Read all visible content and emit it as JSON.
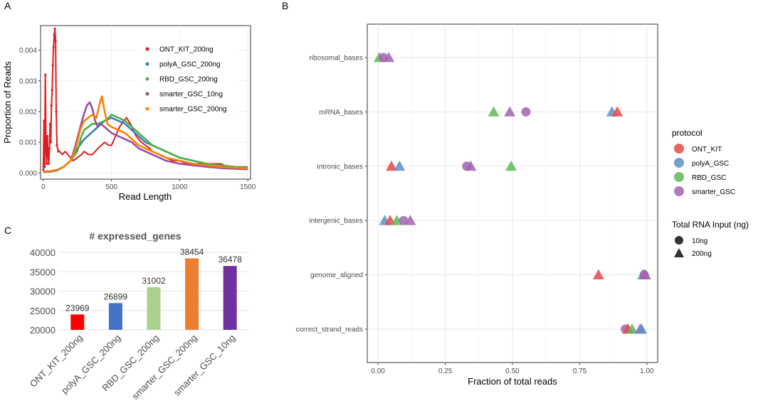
{
  "panel_labels": [
    "A",
    "B",
    "C"
  ],
  "colors": {
    "ONT_KIT": "#e41a1c",
    "polyA_GSC": "#377eb8",
    "RBD_GSC": "#4daf4a",
    "smarter_GSC_10": "#984ea3",
    "smarter_GSC_200": "#ff7f00",
    "B_ONT_KIT": "#e8484a",
    "B_polyA_GSC": "#5b92c8",
    "B_RBD_GSC": "#5fb85a",
    "B_smarter_GSC": "#a463b3",
    "C_bars": [
      "#ff0000",
      "#4472c4",
      "#a9d18e",
      "#ed7d31",
      "#7030a0"
    ]
  },
  "chart_data": [
    {
      "panel": "A",
      "type": "line",
      "xlabel": "Read Length",
      "ylabel": "Proportion of Reads",
      "xlim": [
        -20,
        1520
      ],
      "ylim": [
        -0.0002,
        0.0048
      ],
      "x_ticks": [
        "0",
        "500",
        "1000",
        "1500"
      ],
      "y_ticks": [
        "0.000",
        "0.001",
        "0.002",
        "0.003",
        "0.004"
      ],
      "legend": [
        "ONT_KIT_200ng",
        "polyA_GSC_200ng",
        "RBD_GSC_200ng",
        "smarter_GSC_10ng",
        "smarter_GSC_200ng"
      ],
      "series": [
        {
          "name": "ONT_KIT_200ng",
          "color_key": "ONT_KIT",
          "x": [
            0,
            5,
            10,
            15,
            20,
            25,
            30,
            35,
            40,
            45,
            50,
            55,
            60,
            65,
            70,
            75,
            80,
            85,
            90,
            95,
            100,
            110,
            120,
            140,
            160,
            180,
            200,
            220,
            250,
            280,
            300,
            330,
            360,
            400,
            450,
            480,
            500,
            530,
            560,
            590,
            610,
            640,
            680,
            720,
            750,
            780,
            800,
            850,
            900,
            950,
            1000,
            1050,
            1100,
            1150,
            1200,
            1250,
            1300,
            1350,
            1400,
            1450,
            1500
          ],
          "y": [
            0.0001,
            0.0017,
            0.0002,
            0.0032,
            0.0008,
            0.0003,
            0.0012,
            0.0006,
            0.0003,
            0.0008,
            0.0016,
            0.001,
            0.0022,
            0.0027,
            0.0035,
            0.0041,
            0.0045,
            0.0047,
            0.0043,
            0.002,
            0.0009,
            0.0007,
            0.0007,
            0.0006,
            0.0007,
            0.0006,
            0.0005,
            0.0004,
            0.0005,
            0.0006,
            0.0007,
            0.0006,
            0.0006,
            0.0008,
            0.001,
            0.0009,
            0.0009,
            0.0012,
            0.0015,
            0.0017,
            0.0018,
            0.0016,
            0.0012,
            0.001,
            0.0009,
            0.0008,
            0.0007,
            0.0006,
            0.0005,
            0.0004,
            0.0004,
            0.0003,
            0.0003,
            0.0003,
            0.0003,
            0.0003,
            0.0003,
            0.0002,
            0.0002,
            0.0002,
            0.0002
          ]
        },
        {
          "name": "polyA_GSC_200ng",
          "color_key": "polyA_GSC",
          "x": [
            0,
            50,
            100,
            150,
            200,
            250,
            300,
            350,
            400,
            450,
            500,
            550,
            600,
            650,
            700,
            750,
            800,
            850,
            900,
            950,
            1000,
            1050,
            1100,
            1200,
            1300,
            1400,
            1500
          ],
          "y": [
            3e-05,
            4e-05,
            8e-05,
            0.0002,
            0.0004,
            0.0008,
            0.0011,
            0.0013,
            0.0015,
            0.0017,
            0.0018,
            0.0017,
            0.0016,
            0.0014,
            0.0012,
            0.001,
            0.0009,
            0.0008,
            0.0007,
            0.0006,
            0.0005,
            0.00045,
            0.0004,
            0.0003,
            0.00025,
            0.0002,
            0.00018
          ]
        },
        {
          "name": "RBD_GSC_200ng",
          "color_key": "RBD_GSC",
          "x": [
            0,
            50,
            100,
            150,
            200,
            250,
            280,
            300,
            330,
            360,
            400,
            450,
            480,
            500,
            550,
            600,
            650,
            700,
            750,
            800,
            850,
            900,
            1000,
            1100,
            1200,
            1300,
            1400,
            1500
          ],
          "y": [
            3e-05,
            5e-05,
            0.0001,
            0.0002,
            0.0004,
            0.0007,
            0.0012,
            0.0014,
            0.0015,
            0.0016,
            0.0016,
            0.0017,
            0.0018,
            0.0019,
            0.0018,
            0.0017,
            0.0015,
            0.0013,
            0.0011,
            0.0009,
            0.0008,
            0.0007,
            0.0005,
            0.0004,
            0.0003,
            0.00025,
            0.0002,
            0.00016
          ]
        },
        {
          "name": "smarter_GSC_10ng",
          "color_key": "smarter_GSC_10",
          "x": [
            0,
            50,
            100,
            150,
            200,
            230,
            260,
            290,
            320,
            340,
            360,
            380,
            400,
            420,
            450,
            500,
            550,
            600,
            650,
            700,
            750,
            800,
            900,
            1000,
            1100,
            1200,
            1300,
            1400,
            1500
          ],
          "y": [
            4e-05,
            5e-05,
            0.0001,
            0.0002,
            0.0004,
            0.0008,
            0.0013,
            0.0018,
            0.0022,
            0.0023,
            0.0021,
            0.0017,
            0.0015,
            0.0016,
            0.0015,
            0.0013,
            0.0012,
            0.0011,
            0.001,
            0.0008,
            0.0007,
            0.0006,
            0.0004,
            0.0003,
            0.00025,
            0.0002,
            0.00016,
            0.00014,
            0.00012
          ]
        },
        {
          "name": "smarter_GSC_200ng",
          "color_key": "smarter_GSC_200",
          "x": [
            0,
            50,
            100,
            150,
            200,
            230,
            250,
            270,
            300,
            330,
            360,
            390,
            410,
            430,
            450,
            470,
            500,
            550,
            600,
            650,
            700,
            750,
            800,
            900,
            1000,
            1100,
            1200,
            1300,
            1400,
            1500
          ],
          "y": [
            4e-05,
            6e-05,
            0.0001,
            0.0002,
            0.0004,
            0.0007,
            0.001,
            0.0014,
            0.0017,
            0.0018,
            0.0019,
            0.0018,
            0.0022,
            0.0025,
            0.002,
            0.0016,
            0.0015,
            0.0014,
            0.0013,
            0.0011,
            0.0009,
            0.0008,
            0.0007,
            0.0005,
            0.0004,
            0.0003,
            0.00025,
            0.0002,
            0.00017,
            0.00015
          ]
        }
      ]
    },
    {
      "panel": "B",
      "type": "scatter",
      "xlabel": "Fraction of total reads",
      "xlim": [
        -0.04,
        1.04
      ],
      "x_ticks": [
        "0.00",
        "0.25",
        "0.50",
        "0.75",
        "1.00"
      ],
      "categories": [
        "ribosomal_bases",
        "mRNA_bases",
        "intronic_bases",
        "intergenic_bases",
        "genome_aligned",
        "correct_strand_reads"
      ],
      "legend_protocol_title": "protocol",
      "legend_protocol": [
        "ONT_KIT",
        "polyA_GSC",
        "RBD_GSC",
        "smarter_GSC"
      ],
      "legend_input_title": "Total RNA Input (ng)",
      "legend_input": [
        "10ng",
        "200ng"
      ],
      "points": [
        {
          "cat": "ribosomal_bases",
          "x": 0.005,
          "proto": "RBD_GSC",
          "shape": "triangle"
        },
        {
          "cat": "ribosomal_bases",
          "x": 0.02,
          "proto": "smarter_GSC",
          "shape": "circle"
        },
        {
          "cat": "ribosomal_bases",
          "x": 0.04,
          "proto": "smarter_GSC",
          "shape": "triangle"
        },
        {
          "cat": "mRNA_bases",
          "x": 0.43,
          "proto": "RBD_GSC",
          "shape": "triangle"
        },
        {
          "cat": "mRNA_bases",
          "x": 0.49,
          "proto": "smarter_GSC",
          "shape": "triangle"
        },
        {
          "cat": "mRNA_bases",
          "x": 0.55,
          "proto": "smarter_GSC",
          "shape": "circle"
        },
        {
          "cat": "mRNA_bases",
          "x": 0.87,
          "proto": "polyA_GSC",
          "shape": "triangle"
        },
        {
          "cat": "mRNA_bases",
          "x": 0.89,
          "proto": "ONT_KIT",
          "shape": "triangle"
        },
        {
          "cat": "intronic_bases",
          "x": 0.05,
          "proto": "ONT_KIT",
          "shape": "triangle"
        },
        {
          "cat": "intronic_bases",
          "x": 0.08,
          "proto": "polyA_GSC",
          "shape": "triangle"
        },
        {
          "cat": "intronic_bases",
          "x": 0.33,
          "proto": "smarter_GSC",
          "shape": "circle"
        },
        {
          "cat": "intronic_bases",
          "x": 0.345,
          "proto": "smarter_GSC",
          "shape": "triangle"
        },
        {
          "cat": "intronic_bases",
          "x": 0.495,
          "proto": "RBD_GSC",
          "shape": "triangle"
        },
        {
          "cat": "intergenic_bases",
          "x": 0.025,
          "proto": "polyA_GSC",
          "shape": "triangle"
        },
        {
          "cat": "intergenic_bases",
          "x": 0.045,
          "proto": "ONT_KIT",
          "shape": "triangle"
        },
        {
          "cat": "intergenic_bases",
          "x": 0.07,
          "proto": "RBD_GSC",
          "shape": "triangle"
        },
        {
          "cat": "intergenic_bases",
          "x": 0.095,
          "proto": "smarter_GSC",
          "shape": "circle"
        },
        {
          "cat": "intergenic_bases",
          "x": 0.12,
          "proto": "smarter_GSC",
          "shape": "triangle"
        },
        {
          "cat": "genome_aligned",
          "x": 0.82,
          "proto": "ONT_KIT",
          "shape": "triangle"
        },
        {
          "cat": "genome_aligned",
          "x": 0.985,
          "proto": "RBD_GSC",
          "shape": "triangle"
        },
        {
          "cat": "genome_aligned",
          "x": 0.99,
          "proto": "polyA_GSC",
          "shape": "triangle"
        },
        {
          "cat": "genome_aligned",
          "x": 0.99,
          "proto": "smarter_GSC",
          "shape": "circle"
        },
        {
          "cat": "genome_aligned",
          "x": 0.995,
          "proto": "smarter_GSC",
          "shape": "triangle"
        },
        {
          "cat": "correct_strand_reads",
          "x": 0.92,
          "proto": "smarter_GSC",
          "shape": "circle"
        },
        {
          "cat": "correct_strand_reads",
          "x": 0.93,
          "proto": "ONT_KIT",
          "shape": "triangle"
        },
        {
          "cat": "correct_strand_reads",
          "x": 0.945,
          "proto": "RBD_GSC",
          "shape": "triangle"
        },
        {
          "cat": "correct_strand_reads",
          "x": 0.975,
          "proto": "smarter_GSC",
          "shape": "triangle"
        },
        {
          "cat": "correct_strand_reads",
          "x": 0.98,
          "proto": "polyA_GSC",
          "shape": "triangle"
        }
      ]
    },
    {
      "panel": "C",
      "type": "bar",
      "title": "# expressed_genes",
      "categories": [
        "ONT_KIT_200ng",
        "polyA_GSC_200ng",
        "RBD_GSC_200ng",
        "smarter_GSC_200ng",
        "smarter_GSC_10ng"
      ],
      "values": [
        23969,
        26899,
        31002,
        38454,
        36478
      ],
      "value_labels": [
        "23969",
        "26899",
        "31002",
        "38454",
        "36478"
      ],
      "ylim": [
        20000,
        40000
      ],
      "y_ticks": [
        "20000",
        "25000",
        "30000",
        "35000",
        "40000"
      ]
    }
  ]
}
